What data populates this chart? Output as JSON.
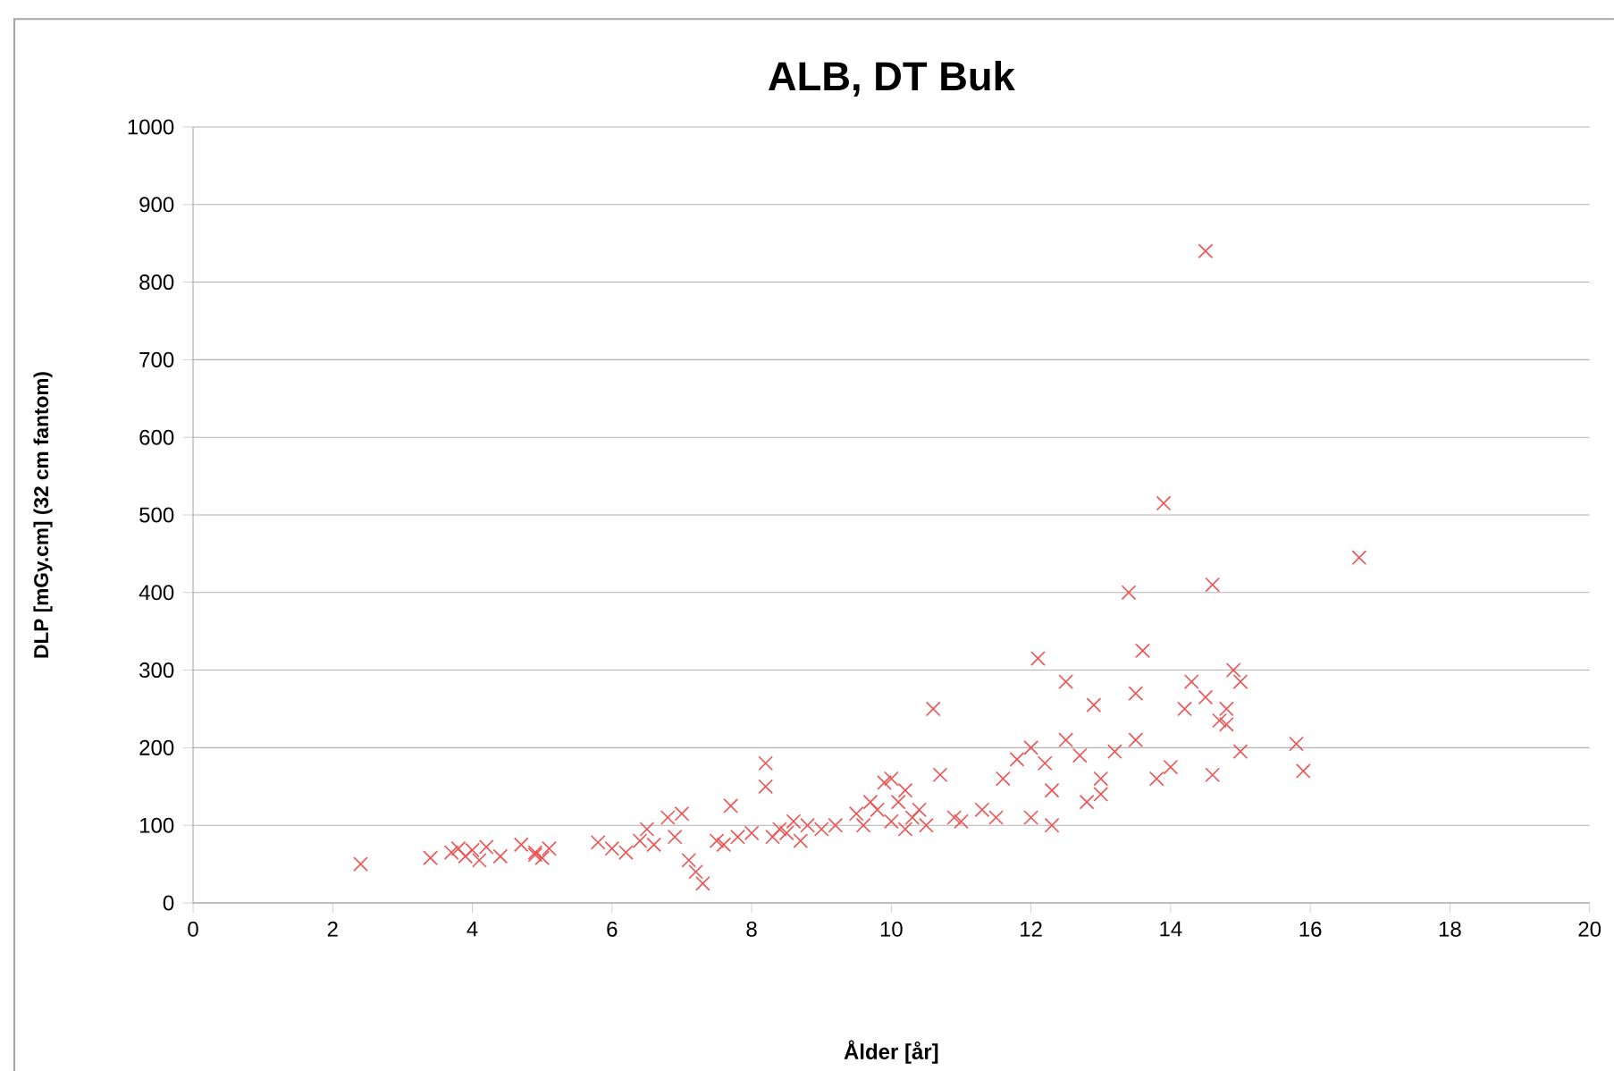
{
  "chart_data": {
    "type": "scatter",
    "title": "ALB,  DT Buk",
    "xlabel": "Ålder [år]",
    "ylabel": "DLP  [mGy.cm]  (32 cm fantom)",
    "xlim": [
      0,
      20
    ],
    "xticks": [
      0,
      2,
      4,
      6,
      8,
      10,
      12,
      14,
      16,
      18,
      20
    ],
    "ylim": [
      0,
      1000
    ],
    "yticks": [
      0,
      100,
      200,
      300,
      400,
      500,
      600,
      700,
      800,
      900,
      1000
    ],
    "grid": "y",
    "marker": "cross",
    "series": [
      {
        "color": "#f05050",
        "x": [
          2.4,
          3.4,
          3.7,
          3.8,
          3.9,
          4.0,
          4.1,
          4.2,
          4.4,
          4.7,
          4.9,
          5.0,
          5.1,
          4.9,
          5.8,
          6.0,
          6.2,
          6.4,
          6.5,
          6.6,
          6.8,
          6.9,
          7.0,
          7.1,
          7.2,
          7.3,
          7.5,
          7.6,
          7.7,
          7.8,
          8.0,
          8.2,
          8.2,
          8.3,
          8.4,
          8.5,
          8.6,
          8.7,
          8.8,
          9.0,
          9.2,
          9.5,
          9.6,
          9.7,
          9.8,
          9.9,
          10.0,
          10.0,
          10.1,
          10.2,
          10.3,
          10.2,
          10.4,
          10.5,
          10.6,
          10.7,
          10.9,
          11.0,
          11.3,
          11.5,
          11.6,
          11.8,
          12.0,
          12.1,
          12.0,
          12.2,
          12.3,
          12.3,
          12.5,
          12.5,
          12.7,
          12.8,
          12.9,
          13.0,
          13.0,
          13.2,
          13.4,
          13.5,
          13.5,
          13.6,
          13.8,
          13.9,
          14.0,
          14.2,
          14.3,
          14.5,
          14.5,
          14.6,
          14.6,
          14.7,
          14.8,
          14.8,
          14.9,
          15.0,
          15.0,
          15.8,
          15.9,
          16.7
        ],
        "values": [
          50,
          58,
          65,
          70,
          60,
          68,
          55,
          72,
          60,
          75,
          62,
          58,
          70,
          65,
          78,
          70,
          65,
          80,
          95,
          75,
          110,
          85,
          115,
          55,
          40,
          25,
          80,
          75,
          125,
          85,
          90,
          180,
          150,
          85,
          95,
          90,
          105,
          80,
          100,
          95,
          100,
          115,
          100,
          130,
          120,
          155,
          105,
          160,
          130,
          145,
          110,
          95,
          120,
          100,
          250,
          165,
          110,
          105,
          120,
          110,
          160,
          185,
          200,
          315,
          110,
          180,
          100,
          145,
          285,
          210,
          190,
          130,
          255,
          160,
          140,
          195,
          400,
          270,
          210,
          325,
          160,
          515,
          175,
          250,
          285,
          840,
          265,
          165,
          410,
          235,
          250,
          230,
          300,
          195,
          285,
          205,
          170,
          445
        ]
      }
    ]
  }
}
